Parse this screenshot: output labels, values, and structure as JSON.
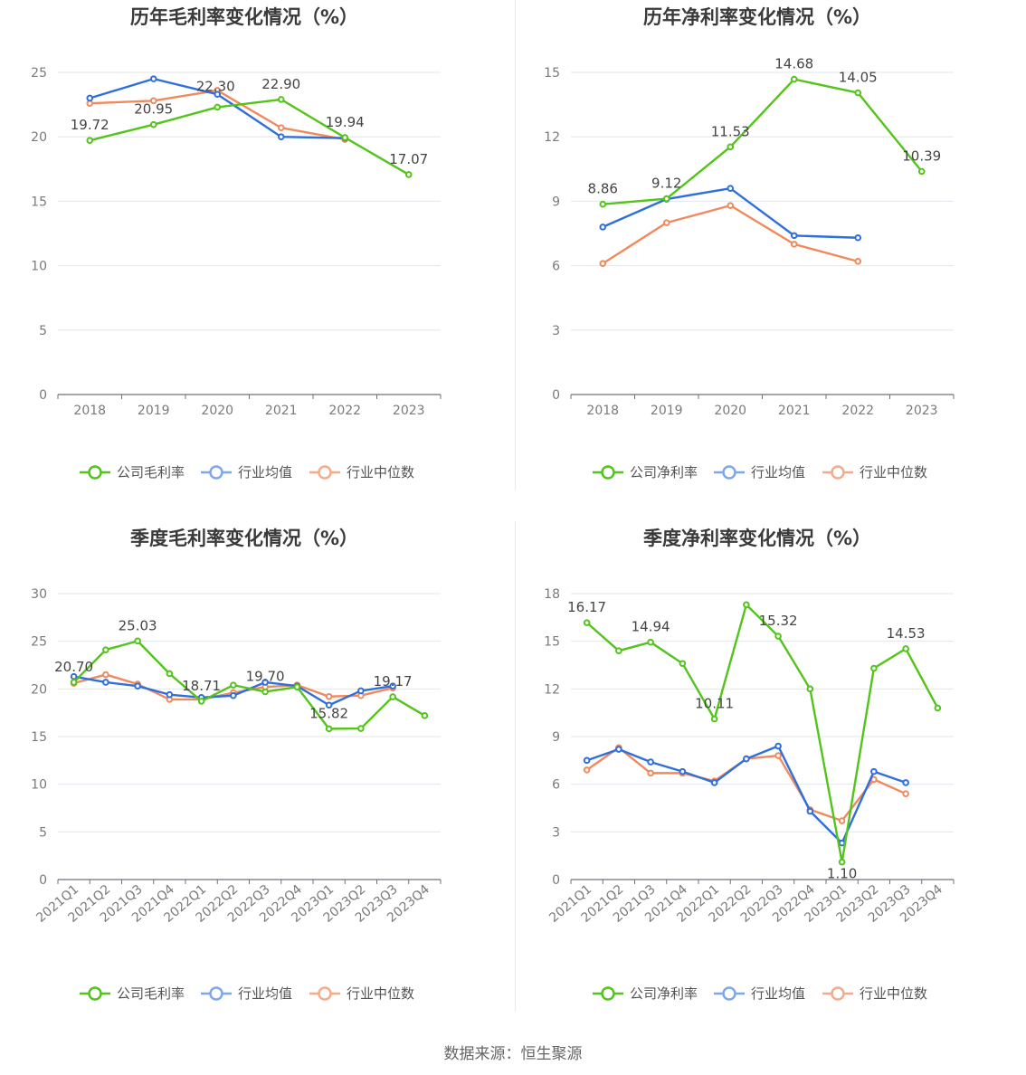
{
  "source_text": "数据来源：恒生聚源",
  "colors": {
    "company": "#52c41a",
    "avg": "#2f6fdc",
    "median": "#f08a5d",
    "legend_avg": "#7fa7ee",
    "legend_median": "#f5ab8c",
    "grid": "#e3e6ee",
    "axis": "#6e7079",
    "tick": "#7a7a7a",
    "label": "#444444",
    "title": "#3a3a3a"
  },
  "chart_data": [
    {
      "id": "annual-gross",
      "type": "line",
      "title": "历年毛利率变化情况（%）",
      "categories": [
        "2018",
        "2019",
        "2020",
        "2021",
        "2022",
        "2023"
      ],
      "ylim": [
        0,
        25
      ],
      "yticks": [
        0,
        5,
        10,
        15,
        20,
        25
      ],
      "grid": true,
      "legend_position": "bottom",
      "series": [
        {
          "name": "公司毛利率",
          "role": "company",
          "values": [
            19.72,
            20.95,
            22.3,
            22.9,
            19.94,
            17.07
          ],
          "labels": [
            "19.72",
            "20.95",
            "22.30",
            "22.90",
            "19.94",
            "17.07"
          ]
        },
        {
          "name": "行业均值",
          "role": "avg",
          "values": [
            23.0,
            24.5,
            23.3,
            20.0,
            19.9,
            null
          ]
        },
        {
          "name": "行业中位数",
          "role": "median",
          "values": [
            22.6,
            22.8,
            23.6,
            20.7,
            19.8,
            null
          ]
        }
      ]
    },
    {
      "id": "annual-net",
      "type": "line",
      "title": "历年净利率变化情况（%）",
      "categories": [
        "2018",
        "2019",
        "2020",
        "2021",
        "2022",
        "2023"
      ],
      "ylim": [
        0,
        15
      ],
      "yticks": [
        0,
        3,
        6,
        9,
        12,
        15
      ],
      "grid": true,
      "legend_position": "bottom",
      "series": [
        {
          "name": "公司净利率",
          "role": "company",
          "values": [
            8.86,
            9.12,
            11.53,
            14.68,
            14.05,
            10.39
          ],
          "labels": [
            "8.86",
            "9.12",
            "11.53",
            "14.68",
            "14.05",
            "10.39"
          ]
        },
        {
          "name": "行业均值",
          "role": "avg",
          "values": [
            7.8,
            9.1,
            9.6,
            7.4,
            7.3,
            null
          ]
        },
        {
          "name": "行业中位数",
          "role": "median",
          "values": [
            6.1,
            8.0,
            8.8,
            7.0,
            6.2,
            null
          ]
        }
      ]
    },
    {
      "id": "quarterly-gross",
      "type": "line",
      "title": "季度毛利率变化情况（%）",
      "categories": [
        "2021Q1",
        "2021Q2",
        "2021Q3",
        "2021Q4",
        "2022Q1",
        "2022Q2",
        "2022Q3",
        "2022Q4",
        "2023Q1",
        "2023Q2",
        "2023Q3",
        "2023Q4"
      ],
      "ylim": [
        0,
        30
      ],
      "yticks": [
        0,
        5,
        10,
        15,
        20,
        25,
        30
      ],
      "grid": true,
      "legend_position": "bottom",
      "series": [
        {
          "name": "公司毛利率",
          "role": "company",
          "values": [
            20.7,
            24.1,
            25.03,
            21.6,
            18.71,
            20.4,
            19.7,
            20.2,
            15.82,
            15.85,
            19.17,
            17.2
          ],
          "labels": [
            "20.70",
            null,
            "25.03",
            null,
            "18.71",
            null,
            "19.70",
            null,
            "15.82",
            null,
            "19.17",
            null
          ]
        },
        {
          "name": "行业均值",
          "role": "avg",
          "values": [
            21.3,
            20.7,
            20.3,
            19.4,
            19.1,
            19.3,
            20.7,
            20.3,
            18.3,
            19.8,
            20.3,
            null
          ]
        },
        {
          "name": "行业中位数",
          "role": "median",
          "values": [
            20.6,
            21.5,
            20.5,
            18.9,
            18.9,
            19.6,
            20.2,
            20.4,
            19.2,
            19.3,
            20.1,
            null
          ]
        }
      ]
    },
    {
      "id": "quarterly-net",
      "type": "line",
      "title": "季度净利率变化情况（%）",
      "categories": [
        "2021Q1",
        "2021Q2",
        "2021Q3",
        "2021Q4",
        "2022Q1",
        "2022Q2",
        "2022Q3",
        "2022Q4",
        "2023Q1",
        "2023Q2",
        "2023Q3",
        "2023Q4"
      ],
      "ylim": [
        0,
        18
      ],
      "yticks": [
        0,
        3,
        6,
        9,
        12,
        15,
        18
      ],
      "grid": true,
      "legend_position": "bottom",
      "series": [
        {
          "name": "公司净利率",
          "role": "company",
          "values": [
            16.17,
            14.4,
            14.94,
            13.6,
            10.11,
            17.3,
            15.32,
            12.0,
            1.1,
            13.3,
            14.53,
            10.8
          ],
          "labels": [
            "16.17",
            null,
            "14.94",
            null,
            "10.11",
            null,
            "15.32",
            null,
            "1.10",
            null,
            "14.53",
            null
          ]
        },
        {
          "name": "行业均值",
          "role": "avg",
          "values": [
            7.5,
            8.2,
            7.4,
            6.8,
            6.1,
            7.6,
            8.4,
            4.3,
            2.3,
            6.8,
            6.1,
            null
          ]
        },
        {
          "name": "行业中位数",
          "role": "median",
          "values": [
            6.9,
            8.3,
            6.7,
            6.7,
            6.2,
            7.6,
            7.8,
            4.4,
            3.7,
            6.3,
            5.4,
            null
          ]
        }
      ]
    }
  ]
}
